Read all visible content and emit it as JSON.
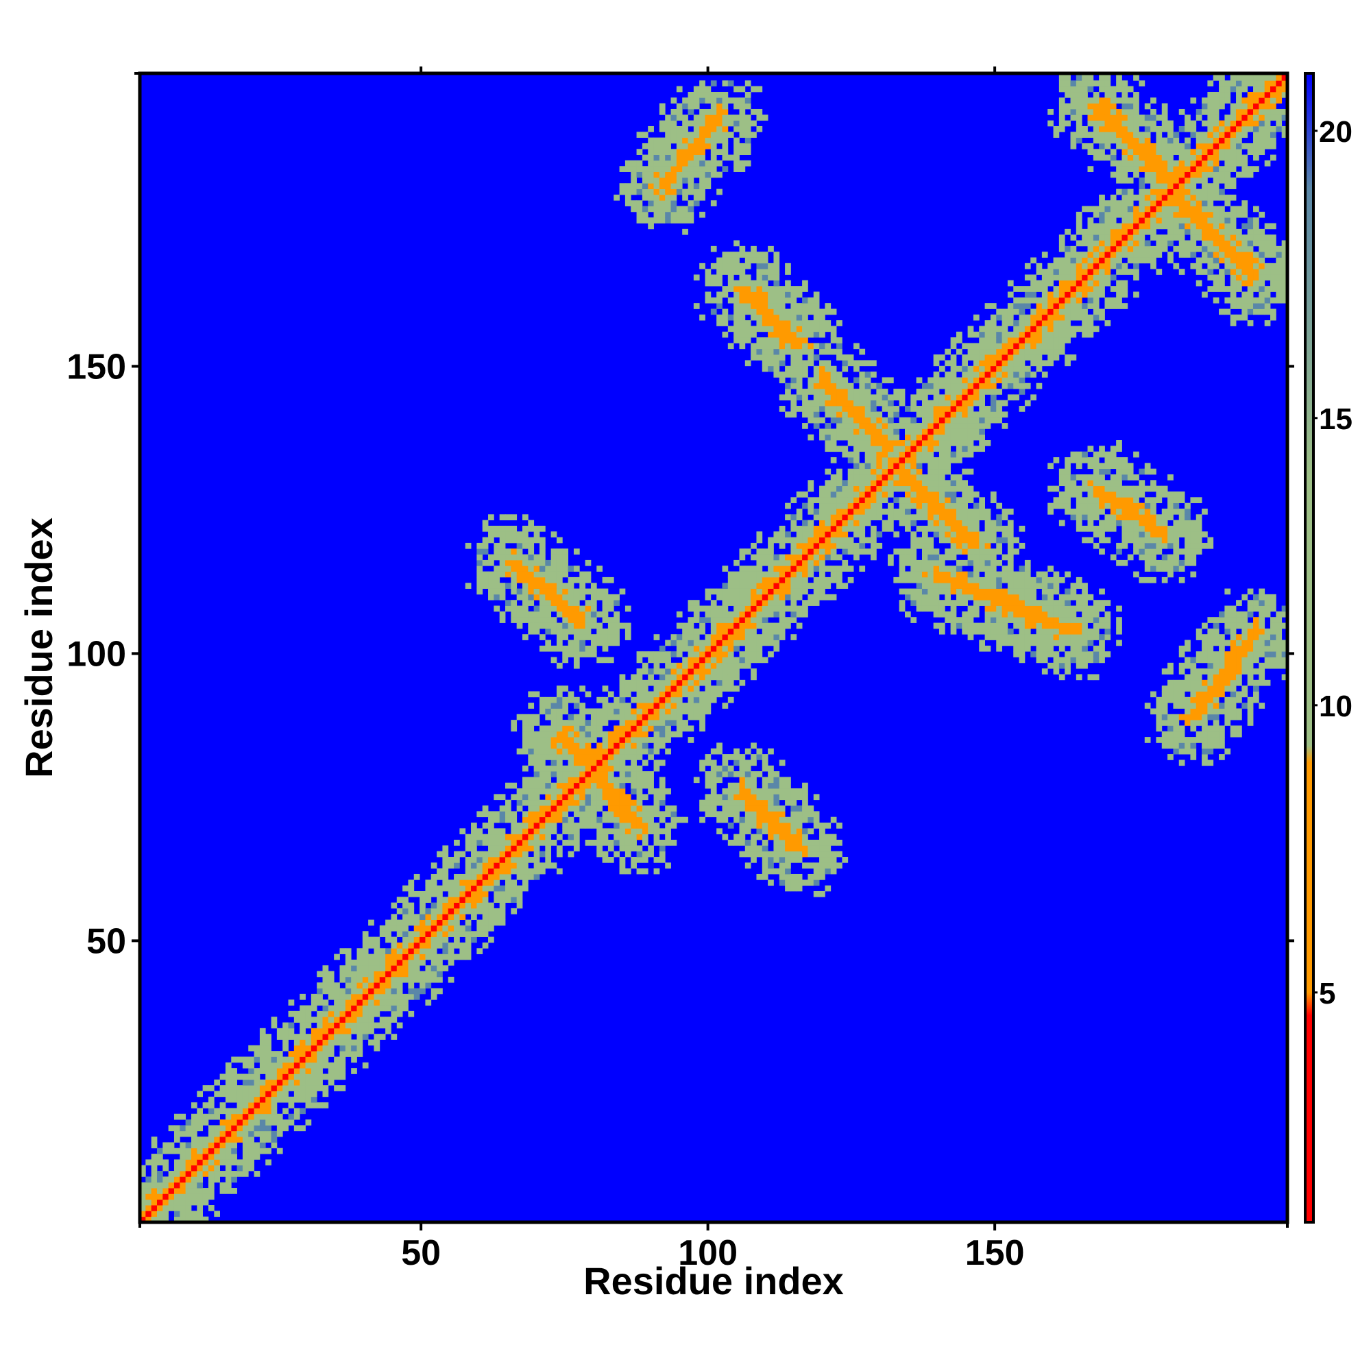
{
  "chart_data": {
    "type": "heatmap",
    "title": "",
    "xlabel": "Residue index",
    "ylabel": "Residue index",
    "xlim": [
      1,
      201
    ],
    "ylim": [
      1,
      201
    ],
    "x_ticks": [
      50,
      100,
      150
    ],
    "y_ticks": [
      50,
      100,
      150
    ],
    "colorbar": {
      "range": [
        1,
        21
      ],
      "ticks": [
        5,
        10,
        15,
        20
      ],
      "colors": {
        "near": "#ff0000",
        "close": "#ff9a00",
        "mid": "#9dbf86",
        "far_tint": "#5a87a8",
        "background": "#0000ff"
      }
    },
    "grid": false,
    "description_features": {
      "main_diagonal": {
        "from": [
          1,
          1
        ],
        "to": [
          201,
          201
        ],
        "value": 1
      },
      "antiparallel_contacts": [
        {
          "from": [
            120,
            148
          ],
          "to": [
            132,
            136
          ],
          "value": 4
        },
        {
          "from": [
            168,
            196
          ],
          "to": [
            181,
            183
          ],
          "value": 4
        },
        {
          "from": [
            132,
            134
          ],
          "to": [
            147,
            119
          ],
          "value": 4
        },
        {
          "from": [
            181,
            181
          ],
          "to": [
            196,
            166
          ],
          "value": 4
        },
        {
          "from": [
            106,
            164
          ],
          "to": [
            116,
            154
          ],
          "value": 5
        },
        {
          "from": [
            140,
            114
          ],
          "to": [
            164,
            104
          ],
          "value": 5
        },
        {
          "from": [
            168,
            129
          ],
          "to": [
            180,
            121
          ],
          "value": 5
        },
        {
          "from": [
            66,
            116
          ],
          "to": [
            78,
            106
          ],
          "value": 5
        },
        {
          "from": [
            106,
            76
          ],
          "to": [
            116,
            66
          ],
          "value": 5
        },
        {
          "from": [
            74,
            86
          ],
          "to": [
            80,
            80
          ],
          "value": 5
        },
        {
          "from": [
            80,
            79
          ],
          "to": [
            88,
            70
          ],
          "value": 5
        }
      ],
      "parallel_contacts": [
        {
          "from": [
            92,
            182
          ],
          "to": [
            102,
            194
          ],
          "value": 5
        },
        {
          "from": [
            185,
            89
          ],
          "to": [
            196,
            104
          ],
          "value": 5
        }
      ]
    }
  }
}
